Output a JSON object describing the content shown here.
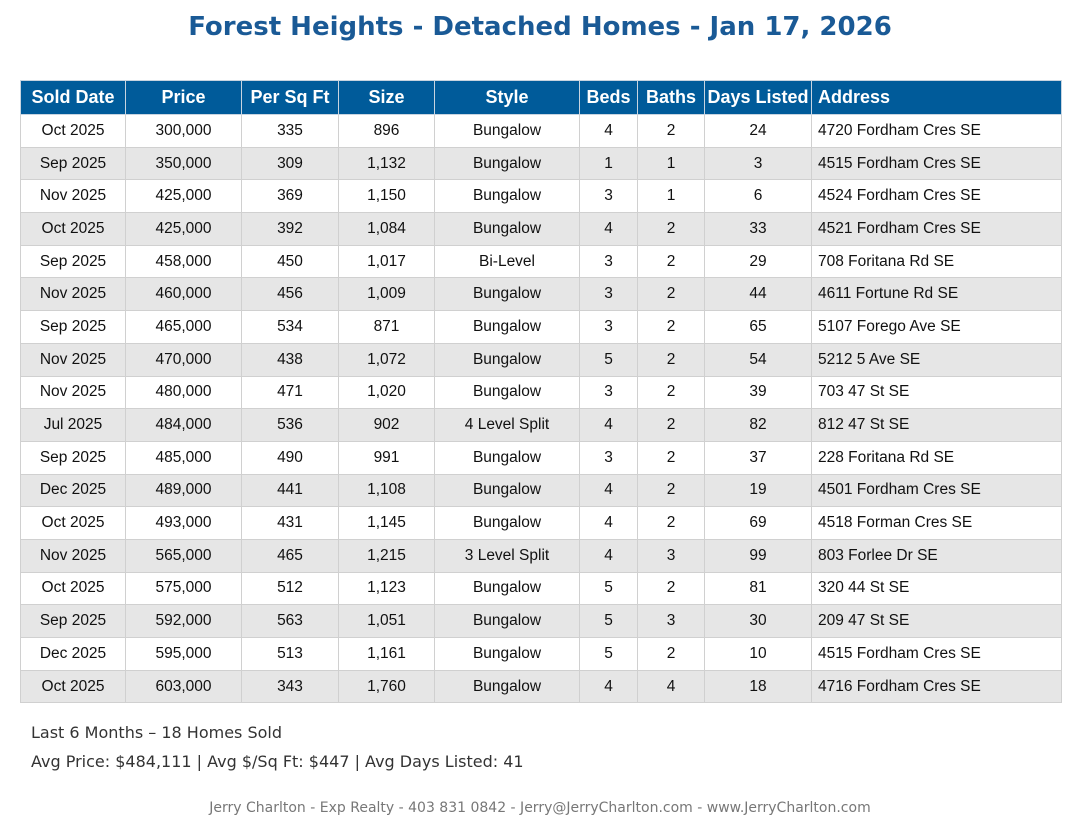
{
  "title": "Forest Heights - Detached Homes - Jan 17, 2026",
  "columns": [
    "Sold Date",
    "Price",
    "Per Sq Ft",
    "Size",
    "Style",
    "Beds",
    "Baths",
    "Days Listed",
    "Address"
  ],
  "rows": [
    [
      "Oct 2025",
      "300,000",
      "335",
      "896",
      "Bungalow",
      "4",
      "2",
      "24",
      "4720 Fordham Cres SE"
    ],
    [
      "Sep 2025",
      "350,000",
      "309",
      "1,132",
      "Bungalow",
      "1",
      "1",
      "3",
      "4515 Fordham Cres SE"
    ],
    [
      "Nov 2025",
      "425,000",
      "369",
      "1,150",
      "Bungalow",
      "3",
      "1",
      "6",
      "4524 Fordham Cres SE"
    ],
    [
      "Oct 2025",
      "425,000",
      "392",
      "1,084",
      "Bungalow",
      "4",
      "2",
      "33",
      "4521 Fordham Cres SE"
    ],
    [
      "Sep 2025",
      "458,000",
      "450",
      "1,017",
      "Bi-Level",
      "3",
      "2",
      "29",
      "708 Foritana Rd SE"
    ],
    [
      "Nov 2025",
      "460,000",
      "456",
      "1,009",
      "Bungalow",
      "3",
      "2",
      "44",
      "4611 Fortune Rd SE"
    ],
    [
      "Sep 2025",
      "465,000",
      "534",
      "871",
      "Bungalow",
      "3",
      "2",
      "65",
      "5107 Forego Ave SE"
    ],
    [
      "Nov 2025",
      "470,000",
      "438",
      "1,072",
      "Bungalow",
      "5",
      "2",
      "54",
      "5212 5 Ave SE"
    ],
    [
      "Nov 2025",
      "480,000",
      "471",
      "1,020",
      "Bungalow",
      "3",
      "2",
      "39",
      "703 47 St SE"
    ],
    [
      "Jul 2025",
      "484,000",
      "536",
      "902",
      "4 Level Split",
      "4",
      "2",
      "82",
      "812 47 St SE"
    ],
    [
      "Sep 2025",
      "485,000",
      "490",
      "991",
      "Bungalow",
      "3",
      "2",
      "37",
      "228 Foritana Rd SE"
    ],
    [
      "Dec 2025",
      "489,000",
      "441",
      "1,108",
      "Bungalow",
      "4",
      "2",
      "19",
      "4501 Fordham Cres SE"
    ],
    [
      "Oct 2025",
      "493,000",
      "431",
      "1,145",
      "Bungalow",
      "4",
      "2",
      "69",
      "4518 Forman Cres SE"
    ],
    [
      "Nov 2025",
      "565,000",
      "465",
      "1,215",
      "3 Level Split",
      "4",
      "3",
      "99",
      "803 Forlee Dr SE"
    ],
    [
      "Oct 2025",
      "575,000",
      "512",
      "1,123",
      "Bungalow",
      "5",
      "2",
      "81",
      "320 44 St SE"
    ],
    [
      "Sep 2025",
      "592,000",
      "563",
      "1,051",
      "Bungalow",
      "5",
      "3",
      "30",
      "209 47 St SE"
    ],
    [
      "Dec 2025",
      "595,000",
      "513",
      "1,161",
      "Bungalow",
      "5",
      "2",
      "10",
      "4515 Fordham Cres SE"
    ],
    [
      "Oct 2025",
      "603,000",
      "343",
      "1,760",
      "Bungalow",
      "4",
      "4",
      "18",
      "4716 Fordham Cres SE"
    ]
  ],
  "summary": {
    "line1": "Last 6 Months – 18 Homes Sold",
    "line2": "Avg Price: $484,111 | Avg $/Sq Ft: $447 | Avg Days Listed: 41"
  },
  "footer": "Jerry Charlton - Exp Realty - 403 831 0842 - Jerry@JerryCharlton.com - www.JerryCharlton.com",
  "colors": {
    "header": "#005b9a",
    "title": "#1a5a96",
    "stripe": "#e6e6e6"
  }
}
